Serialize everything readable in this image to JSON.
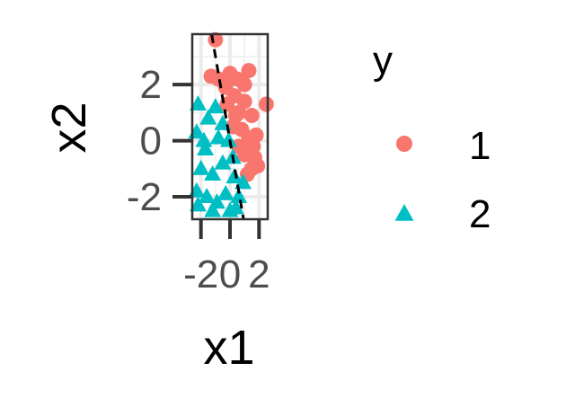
{
  "chart_data": {
    "type": "scatter",
    "title": "",
    "xlabel": "x1",
    "ylabel": "x2",
    "xlim": [
      -2.6,
      2.6
    ],
    "ylim": [
      -2.8,
      3.8
    ],
    "x_ticks": [
      -2,
      0,
      2
    ],
    "x_tick_labels": [
      "-2",
      "0",
      "2"
    ],
    "y_ticks": [
      -2,
      0,
      2
    ],
    "y_tick_labels": [
      "-2",
      "0",
      "2"
    ],
    "grid": true,
    "legend": {
      "title": "y",
      "position": "right",
      "entries": [
        {
          "label": "1",
          "shape": "circle",
          "color": "#F8766D"
        },
        {
          "label": "2",
          "shape": "triangle",
          "color": "#00BFC4"
        }
      ]
    },
    "reference_line": {
      "style": "dashed",
      "color": "#000000",
      "slope": -3.0,
      "intercept": 0.0
    },
    "series": [
      {
        "name": "1",
        "color": "#F8766D",
        "shape": "circle",
        "points": [
          [
            -1.0,
            3.6
          ],
          [
            -1.3,
            2.3
          ],
          [
            -0.8,
            2.2
          ],
          [
            0.0,
            2.4
          ],
          [
            0.5,
            2.2
          ],
          [
            1.3,
            2.5
          ],
          [
            1.0,
            2.0
          ],
          [
            -0.3,
            1.9
          ],
          [
            0.3,
            1.6
          ],
          [
            1.0,
            1.4
          ],
          [
            0.6,
            1.0
          ],
          [
            1.5,
            0.9
          ],
          [
            -0.2,
            1.3
          ],
          [
            0.8,
            0.4
          ],
          [
            1.3,
            0.1
          ],
          [
            0.2,
            0.5
          ],
          [
            1.6,
            -0.2
          ],
          [
            1.0,
            -0.5
          ],
          [
            1.7,
            -0.6
          ],
          [
            1.5,
            -1.0
          ],
          [
            0.6,
            -0.2
          ],
          [
            2.5,
            1.3
          ],
          [
            1.8,
            0.2
          ],
          [
            1.2,
            -1.2
          ],
          [
            0.4,
            0.9
          ],
          [
            1.9,
            -0.9
          ]
        ]
      },
      {
        "name": "2",
        "color": "#00BFC4",
        "shape": "triangle",
        "points": [
          [
            -2.2,
            1.3
          ],
          [
            -1.5,
            0.8
          ],
          [
            -1.0,
            1.2
          ],
          [
            -2.3,
            0.3
          ],
          [
            -1.7,
            -0.3
          ],
          [
            -0.8,
            0.1
          ],
          [
            -2.0,
            -1.0
          ],
          [
            -1.2,
            -1.2
          ],
          [
            -0.5,
            -0.8
          ],
          [
            -2.3,
            -1.8
          ],
          [
            -1.6,
            -2.0
          ],
          [
            -0.9,
            -2.2
          ],
          [
            -0.3,
            -1.9
          ],
          [
            0.3,
            -1.3
          ],
          [
            0.6,
            -2.0
          ],
          [
            0.0,
            -2.5
          ],
          [
            -1.2,
            -2.5
          ],
          [
            -2.2,
            -2.3
          ],
          [
            -0.5,
            0.6
          ],
          [
            0.2,
            -0.6
          ],
          [
            0.9,
            -1.5
          ],
          [
            -1.8,
            0.0
          ],
          [
            0.4,
            -2.4
          ],
          [
            -0.1,
            0.0
          ]
        ]
      }
    ]
  }
}
